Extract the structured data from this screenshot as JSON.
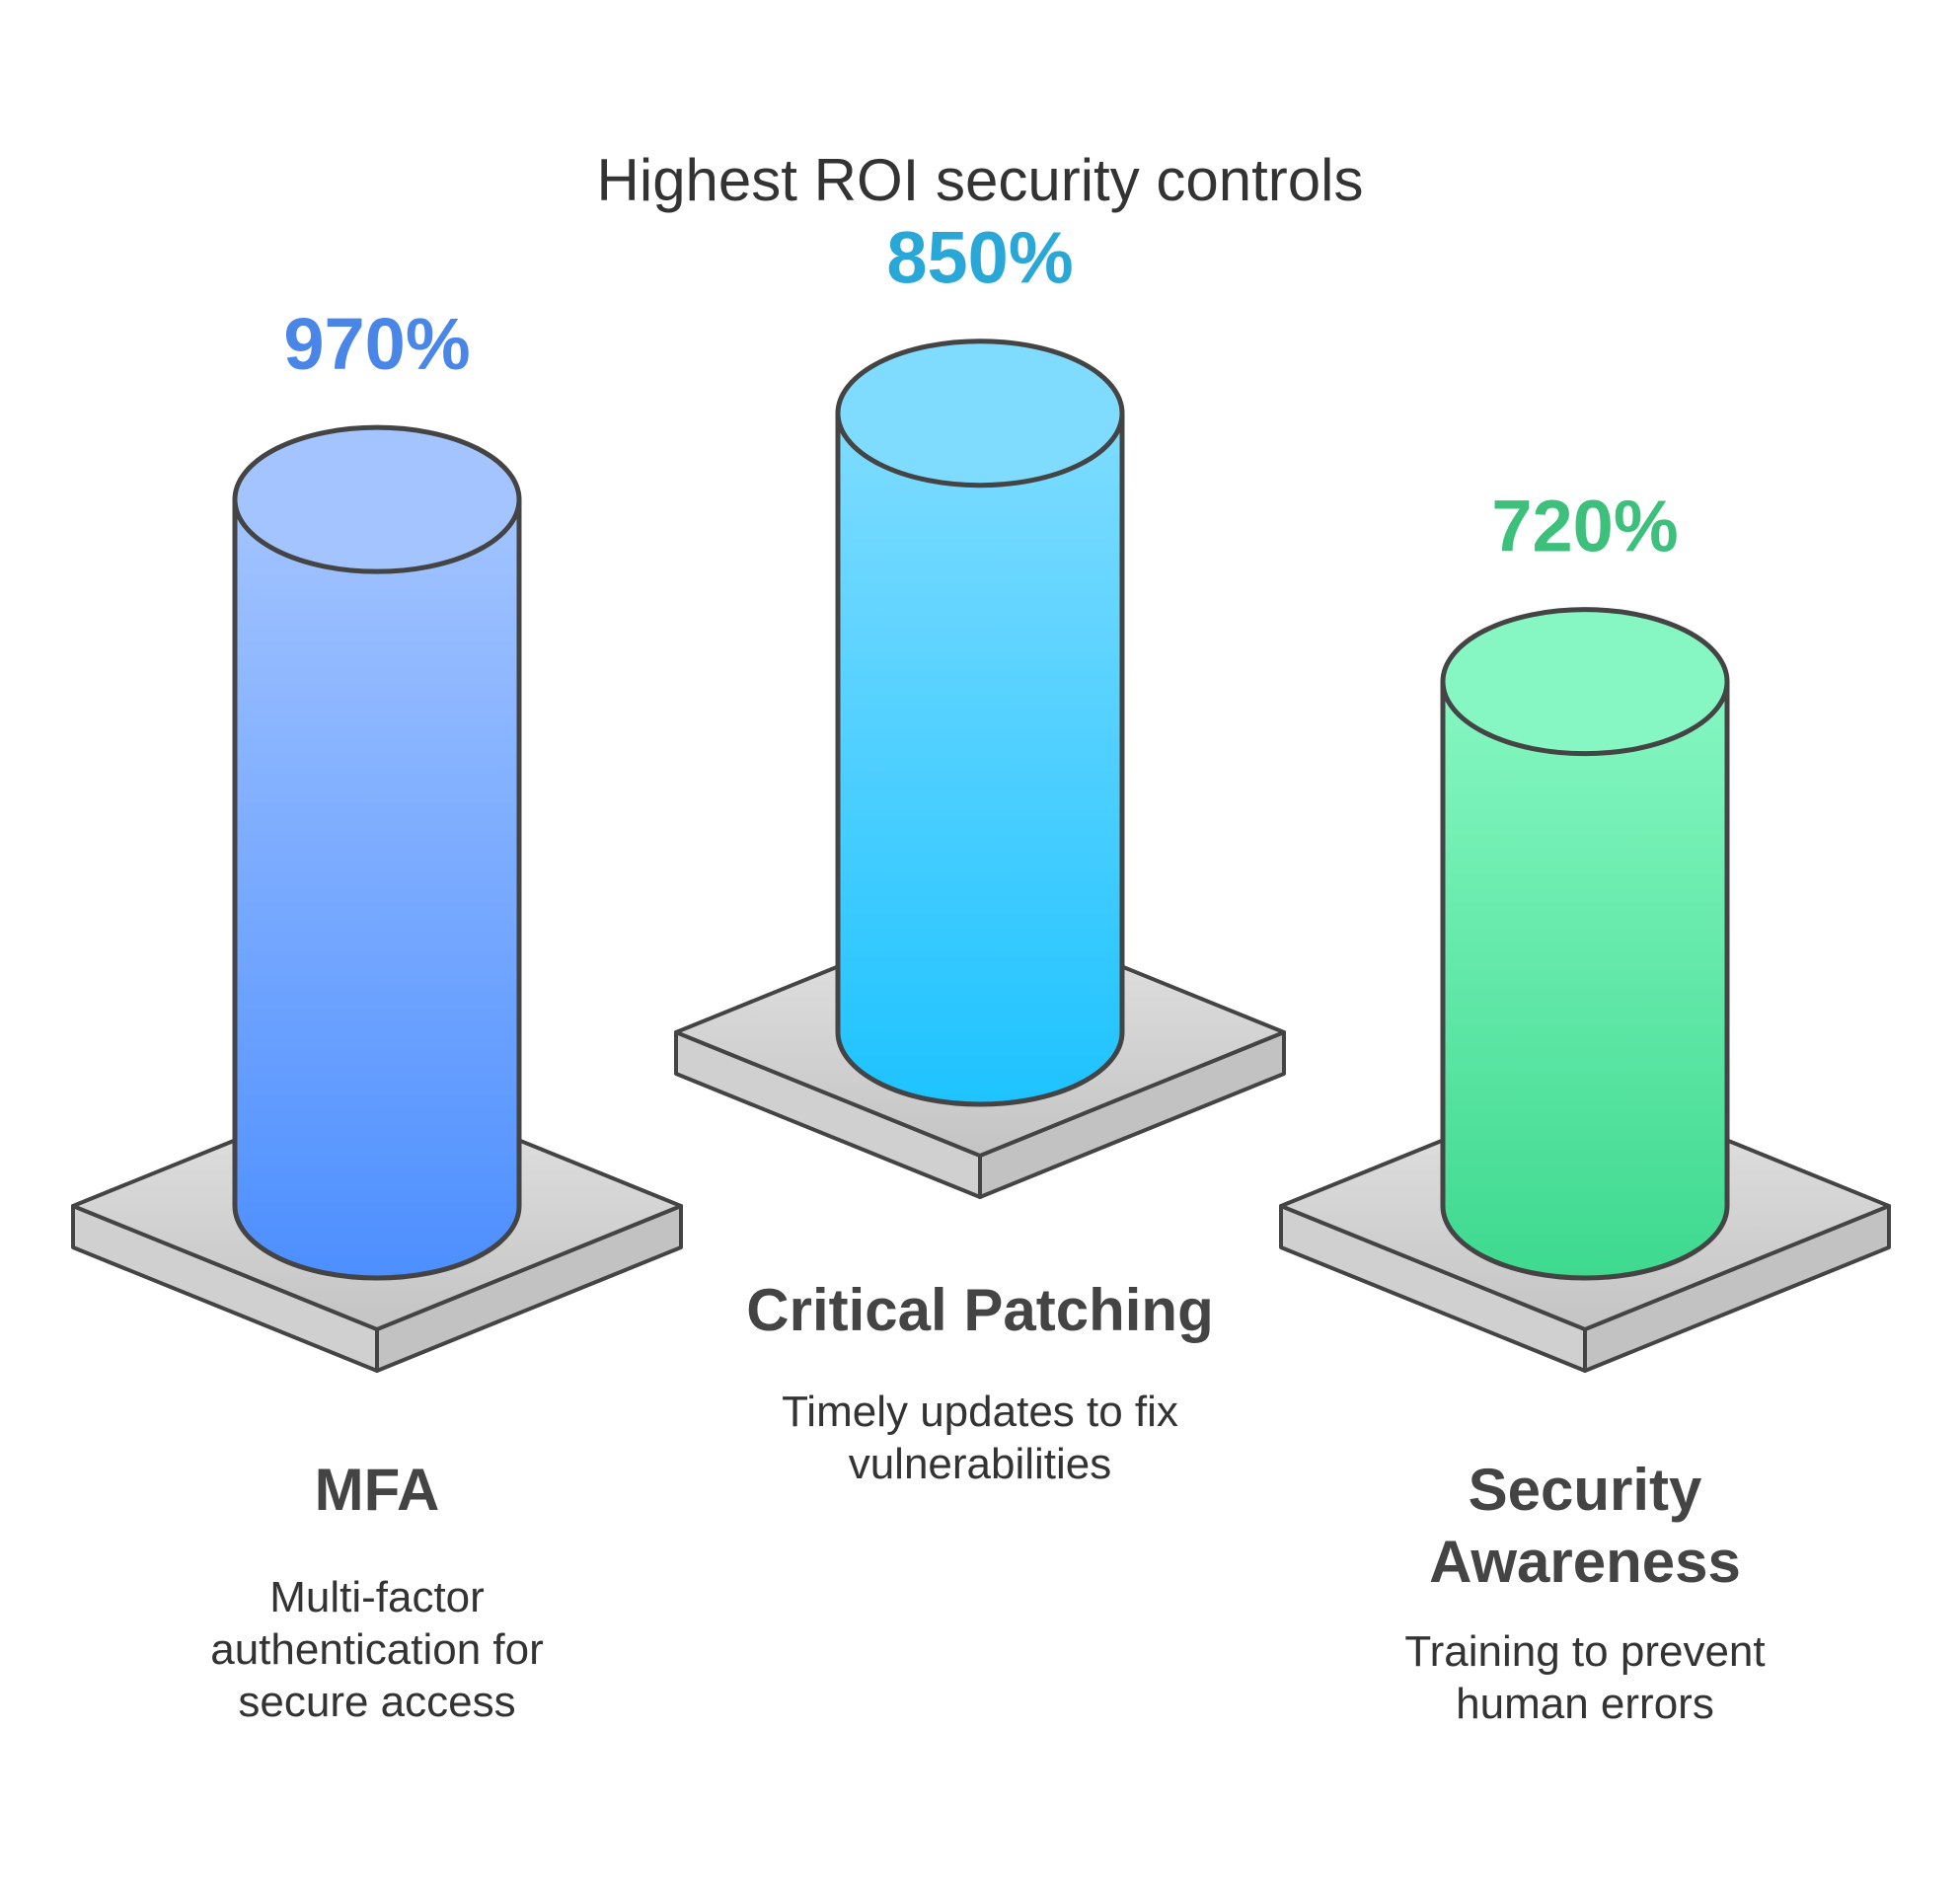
{
  "chart_data": {
    "type": "bar",
    "title": "Highest ROI security controls",
    "categories": [
      "MFA",
      "Critical Patching",
      "Security Awareness"
    ],
    "values": [
      970,
      850,
      720
    ],
    "value_labels": [
      "970%",
      "850%",
      "720%"
    ],
    "descriptions": [
      [
        "Multi-factor",
        "authentication for",
        "secure access"
      ],
      [
        "Timely updates to fix",
        "vulnerabilities"
      ],
      [
        "Training to prevent",
        "human errors"
      ]
    ],
    "label_lines": [
      [
        "MFA"
      ],
      [
        "Critical Patching"
      ],
      [
        "Security",
        "Awareness"
      ]
    ],
    "colors": [
      {
        "top": "#a3c4ff",
        "bottom": "#4d8fff",
        "value": "#4a86e8"
      },
      {
        "top": "#7fdcff",
        "bottom": "#1ec3ff",
        "value": "#29a8d8"
      },
      {
        "top": "#86f7c2",
        "bottom": "#3ed98f",
        "value": "#3cc07c"
      }
    ]
  }
}
